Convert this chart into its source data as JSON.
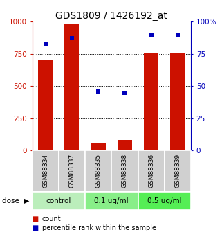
{
  "title": "GDS1809 / 1426192_at",
  "samples": [
    "GSM88334",
    "GSM88337",
    "GSM88335",
    "GSM88338",
    "GSM88336",
    "GSM88339"
  ],
  "counts": [
    700,
    980,
    60,
    80,
    760,
    760
  ],
  "percentiles": [
    83,
    87,
    46,
    45,
    90,
    90
  ],
  "groups": [
    {
      "label": "control",
      "indices": [
        0,
        1
      ]
    },
    {
      "label": "0.1 ug/ml",
      "indices": [
        2,
        3
      ]
    },
    {
      "label": "0.5 ug/ml",
      "indices": [
        4,
        5
      ]
    }
  ],
  "group_colors": [
    "#bbeebb",
    "#88ee88",
    "#55ee55"
  ],
  "bar_color": "#cc1100",
  "scatter_color": "#0000bb",
  "left_ylim": [
    0,
    1000
  ],
  "right_ylim": [
    0,
    100
  ],
  "left_yticks": [
    0,
    250,
    500,
    750,
    1000
  ],
  "right_yticks": [
    0,
    25,
    50,
    75,
    100
  ],
  "right_yticklabels": [
    "0",
    "25",
    "50",
    "75",
    "100%"
  ],
  "hlines": [
    250,
    500,
    750
  ],
  "bar_width": 0.55,
  "legend_count_label": "count",
  "legend_pct_label": "percentile rank within the sample",
  "bg_color": "#ffffff",
  "left_tick_color": "#cc1100",
  "right_tick_color": "#0000bb",
  "sample_box_color": "#d0d0d0",
  "dose_label": "dose"
}
